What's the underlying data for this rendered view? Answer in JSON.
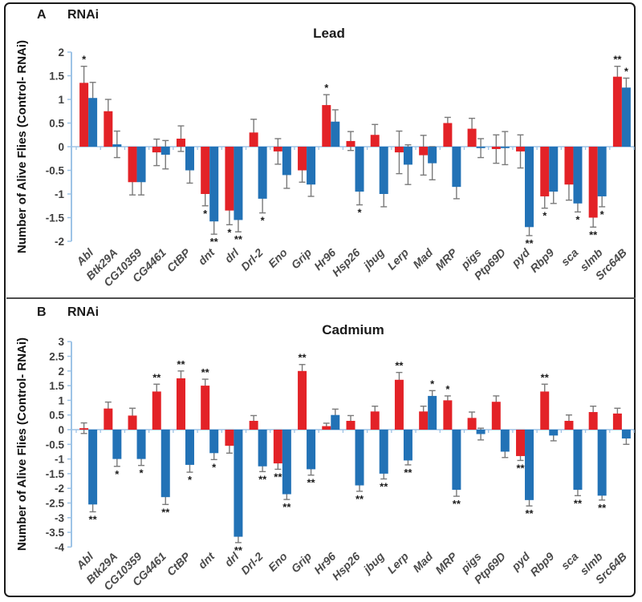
{
  "figure": {
    "panels": [
      {
        "panel_letter": "A",
        "rnai_label": "RNAi",
        "title": "Lead"
      },
      {
        "panel_letter": "B",
        "rnai_label": "RNAi",
        "title": "Cadmium"
      }
    ]
  },
  "colors": {
    "bar_red": "#E32227",
    "bar_blue": "#2272B6",
    "axis_blue": "#9DC3E6",
    "error_gray": "#7A7A7A",
    "sig_black": "#1A1A1A",
    "tick_label": "#3D3D3D",
    "category_label": "#4A4A4A",
    "border": "#1A1A1A"
  },
  "chart_data": [
    {
      "type": "bar",
      "title": "Lead",
      "ylabel": "Number of Alive Flies (Control- RNAi)",
      "ylim": [
        -2,
        2
      ],
      "ytick_step": 0.5,
      "grid": false,
      "legend": "none",
      "categories": [
        "Abl",
        "Btk29A",
        "CG10359",
        "CG4461",
        "CtBP",
        "dnt",
        "drl",
        "Drl-2",
        "Eno",
        "Grip",
        "Hr96",
        "Hsp26",
        "jbug",
        "Lerp",
        "Mad",
        "MRP",
        "pigs",
        "Ptp69D",
        "pyd",
        "Rbp9",
        "sca",
        "slmb",
        "Src64B"
      ],
      "series": [
        {
          "name": "red",
          "color": "#E32227",
          "values": [
            1.35,
            0.75,
            -0.75,
            -0.12,
            0.17,
            -1.0,
            -1.35,
            0.3,
            -0.1,
            -0.5,
            0.88,
            0.12,
            0.25,
            -0.12,
            -0.18,
            0.5,
            0.38,
            -0.05,
            -0.1,
            -1.05,
            -0.8,
            -1.5,
            1.48
          ],
          "errors": [
            0.35,
            0.25,
            0.27,
            0.28,
            0.27,
            0.25,
            0.3,
            0.28,
            0.27,
            0.25,
            0.22,
            0.2,
            0.22,
            0.45,
            0.42,
            0.12,
            0.22,
            0.3,
            0.35,
            0.25,
            0.33,
            0.2,
            0.22
          ],
          "sig": [
            "*",
            "",
            "",
            "",
            "",
            "*",
            "*",
            "",
            "",
            "",
            "*",
            "",
            "",
            "",
            "",
            "",
            "",
            "",
            "",
            "*",
            "",
            "**",
            "**"
          ]
        },
        {
          "name": "blue",
          "color": "#2272B6",
          "values": [
            1.03,
            0.05,
            -0.75,
            -0.17,
            -0.5,
            -1.58,
            -1.55,
            -1.1,
            -0.6,
            -0.8,
            0.53,
            -0.95,
            -1.0,
            -0.38,
            -0.35,
            -0.85,
            -0.03,
            -0.03,
            -1.7,
            -0.95,
            -1.2,
            -1.05,
            1.25
          ],
          "errors": [
            0.33,
            0.28,
            0.27,
            0.3,
            0.27,
            0.27,
            0.25,
            0.3,
            0.28,
            0.25,
            0.25,
            0.28,
            0.27,
            0.42,
            0.35,
            0.25,
            0.2,
            0.35,
            0.18,
            0.25,
            0.18,
            0.22,
            0.2
          ],
          "sig": [
            "",
            "",
            "",
            "",
            "",
            "**",
            "**",
            "*",
            "",
            "",
            "",
            "*",
            "",
            "",
            "",
            "",
            "",
            "",
            "**",
            "",
            "*",
            "*",
            "*"
          ]
        }
      ]
    },
    {
      "type": "bar",
      "title": "Cadmium",
      "ylabel": "Number of Alive Flies (Control- RNAi)",
      "ylim": [
        -4,
        3
      ],
      "ytick_step": 0.5,
      "grid": false,
      "legend": "none",
      "categories": [
        "Abl",
        "Btk29A",
        "CG10359",
        "CG4461",
        "CtBP",
        "dnt",
        "drl",
        "Drl-2",
        "Eno",
        "Grip",
        "Hr96",
        "Hsp26",
        "jbug",
        "Lerp",
        "Mad",
        "MRP",
        "pigs",
        "Ptp69D",
        "pyd",
        "Rbp9",
        "sca",
        "slmb",
        "Src64B"
      ],
      "series": [
        {
          "name": "red",
          "color": "#E32227",
          "values": [
            0.05,
            0.72,
            0.48,
            1.3,
            1.75,
            1.5,
            -0.55,
            0.3,
            -1.15,
            2.0,
            0.12,
            0.3,
            0.62,
            1.7,
            0.62,
            1.0,
            0.4,
            0.95,
            -0.9,
            1.3,
            0.3,
            0.6,
            0.55
          ],
          "errors": [
            0.18,
            0.22,
            0.25,
            0.25,
            0.25,
            0.22,
            0.25,
            0.18,
            0.2,
            0.22,
            0.1,
            0.18,
            0.18,
            0.25,
            0.18,
            0.15,
            0.2,
            0.2,
            0.15,
            0.25,
            0.2,
            0.2,
            0.18
          ],
          "sig": [
            "",
            "",
            "",
            "**",
            "**",
            "**",
            "",
            "",
            "**",
            "**",
            "",
            "",
            "",
            "**",
            "",
            "*",
            "",
            "",
            "**",
            "**",
            "",
            "",
            ""
          ]
        },
        {
          "name": "blue",
          "color": "#2272B6",
          "values": [
            -2.55,
            -1.0,
            -1.0,
            -2.3,
            -1.2,
            -0.8,
            -3.65,
            -1.25,
            -2.2,
            -1.35,
            0.5,
            -1.9,
            -1.5,
            -1.05,
            1.15,
            -2.05,
            -0.15,
            -0.75,
            -2.4,
            -0.2,
            -2.05,
            -2.25,
            -0.3
          ],
          "errors": [
            0.25,
            0.25,
            0.22,
            0.25,
            0.25,
            0.22,
            0.2,
            0.18,
            0.18,
            0.2,
            0.2,
            0.2,
            0.18,
            0.15,
            0.18,
            0.22,
            0.2,
            0.2,
            0.2,
            0.18,
            0.2,
            0.15,
            0.2
          ],
          "sig": [
            "**",
            "*",
            "*",
            "**",
            "*",
            "*",
            "**",
            "**",
            "**",
            "**",
            "",
            "**",
            "**",
            "**",
            "*",
            "**",
            "",
            "",
            "**",
            "",
            "**",
            "**",
            ""
          ]
        }
      ]
    }
  ]
}
